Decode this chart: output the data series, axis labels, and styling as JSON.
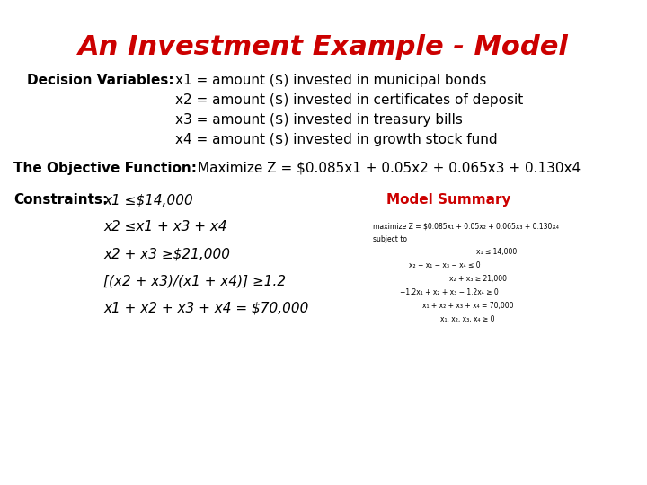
{
  "title": "An Investment Example - Model",
  "title_color": "#CC0000",
  "title_fontsize": 22,
  "bg_color": "#FFFFFF",
  "decision_label": "Decision Variables:",
  "decision_vars": [
    "x1 = amount ($) invested in municipal bonds",
    "x2 = amount ($) invested in certificates of deposit",
    "x3 = amount ($) invested in treasury bills",
    "x4 = amount ($) invested in growth stock fund"
  ],
  "objective_label": "The Objective Function:",
  "objective_text": "Maximize Z = $0.085x1 + 0.05x2 + 0.065x3 + 0.130x4",
  "constraints_label": "Constraints:",
  "constraints": [
    "x1 ≤$14,000",
    "x2 ≤x1 + x3 + x4",
    "x2 + x3 ≥$21,000",
    "[(x2 + x3)/(x1 + x4)] ≥1.2",
    "x1 + x2 + x3 + x4 = $70,000"
  ],
  "model_summary_title": "Model Summary",
  "model_summary_line1": "maximize Z = $0.085x₁ + 0.05x₂ + 0.065x₃ + 0.130x₄",
  "model_summary_line2": "subject to",
  "model_summary_constraints": [
    "x₁ ≤ 14,000",
    "x₂ − x₁ − x₃ − x₄ ≤ 0",
    "x₂ + x₃ ≥ 21,000",
    "−1.2x₁ + x₂ + x₃ − 1.2x₄ ≥ 0",
    "x₁ + x₂ + x₃ + x₄ = 70,000",
    "x₁, x₂, x₃, x₄ ≥ 0"
  ],
  "red_color": "#CC0000",
  "black_color": "#000000"
}
